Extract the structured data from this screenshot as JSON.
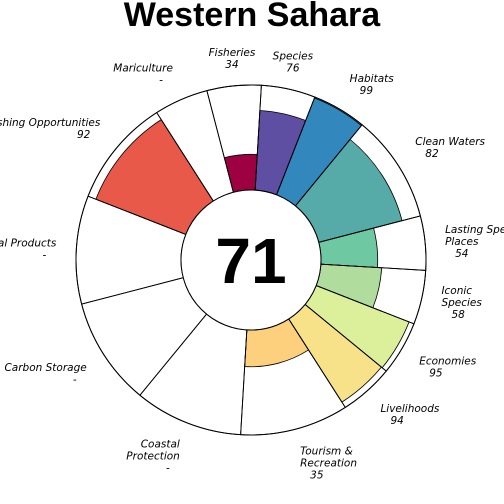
{
  "chart_data": {
    "type": "flower",
    "title": "Western Sahara",
    "overall_score": "71",
    "ylim": [
      0,
      100
    ],
    "segments": [
      {
        "label": [
          "Natural Products"
        ],
        "value": null,
        "value_text": "-",
        "color": null,
        "width": 1,
        "label_anchor": "middle"
      },
      {
        "label": [
          "Artisanal Fishing Opportunities"
        ],
        "value": 92,
        "value_text": "92",
        "color": "#E8594A",
        "width": 1,
        "label_anchor": "middle"
      },
      {
        "label": [
          "Mariculture"
        ],
        "value": null,
        "value_text": "-",
        "color": null,
        "width": 0.5,
        "label_anchor": "middle"
      },
      {
        "label": [
          "Fisheries"
        ],
        "value": 34,
        "value_text": "34",
        "color": "#9E0142",
        "width": 0.5,
        "label_anchor": "middle"
      },
      {
        "label": [
          "Species"
        ],
        "value": 76,
        "value_text": "76",
        "color": "#5E4FA2",
        "width": 0.5,
        "label_anchor": "middle"
      },
      {
        "label": [
          "Habitats"
        ],
        "value": 99,
        "value_text": "99",
        "color": "#3288BD",
        "width": 0.5,
        "label_anchor": "middle"
      },
      {
        "label": [
          "Clean Waters"
        ],
        "value": 82,
        "value_text": "82",
        "color": "#56ABA8",
        "width": 1,
        "label_anchor": "middle"
      },
      {
        "label": [
          "Lasting Special",
          "Places"
        ],
        "value": 54,
        "value_text": "54",
        "color": "#6EC9A2",
        "width": 0.5,
        "label_anchor": "middle"
      },
      {
        "label": [
          "Iconic",
          "Species"
        ],
        "value": 58,
        "value_text": "58",
        "color": "#B0DD9D",
        "width": 0.5,
        "label_anchor": "middle"
      },
      {
        "label": [
          "Economies"
        ],
        "value": 95,
        "value_text": "95",
        "color": "#DCEF9A",
        "width": 0.5,
        "label_anchor": "middle"
      },
      {
        "label": [
          "Livelihoods"
        ],
        "value": 94,
        "value_text": "94",
        "color": "#F7E28A",
        "width": 0.5,
        "label_anchor": "middle"
      },
      {
        "label": [
          "Tourism &",
          "Recreation"
        ],
        "value": 35,
        "value_text": "35",
        "color": "#FDD07E",
        "width": 1,
        "label_anchor": "middle"
      },
      {
        "label": [
          "Coastal",
          "Protection"
        ],
        "value": null,
        "value_text": "-",
        "color": null,
        "width": 1,
        "label_anchor": "middle"
      },
      {
        "label": [
          "Carbon Storage"
        ],
        "value": null,
        "value_text": "-",
        "color": null,
        "width": 1,
        "label_anchor": "middle"
      }
    ]
  }
}
